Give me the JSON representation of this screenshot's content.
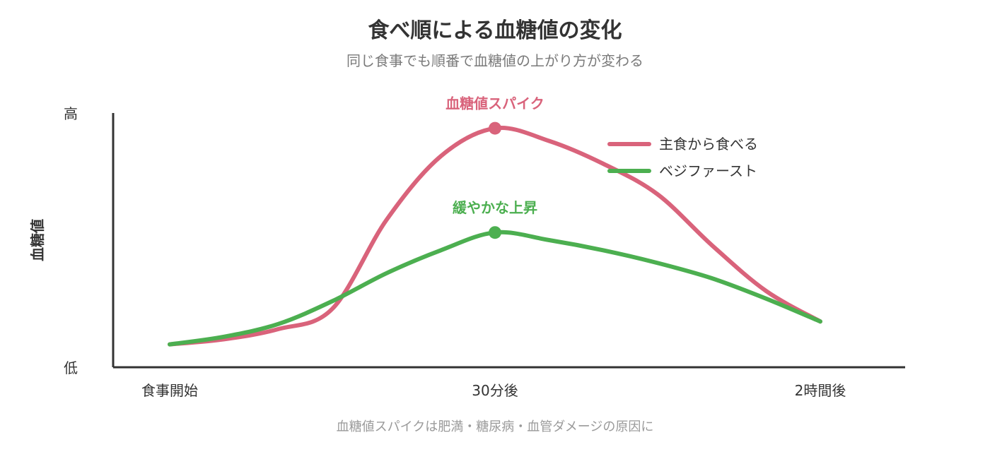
{
  "title": "食べ順による血糖値の変化",
  "subtitle": "同じ食事でも順番で血糖値の上がり方が変わる",
  "footnote": "血糖値スパイクは肥満・糖尿病・血管ダメージの原因に",
  "chart_data": {
    "type": "line",
    "ylabel": "血糖値",
    "y_ticks": [
      "低",
      "高"
    ],
    "ylim": [
      0,
      1
    ],
    "x_ticks": [
      "食事開始",
      "30分後",
      "2時間後"
    ],
    "xlim": [
      0,
      120
    ],
    "series": [
      {
        "name": "主食から食べる",
        "color": "#d9637b",
        "x": [
          0,
          10,
          20,
          30,
          40,
          50,
          60,
          70,
          80,
          90,
          100,
          110,
          120
        ],
        "y": [
          0.09,
          0.11,
          0.15,
          0.23,
          0.58,
          0.83,
          0.94,
          0.89,
          0.8,
          0.68,
          0.48,
          0.3,
          0.18
        ]
      },
      {
        "name": "ベジファースト",
        "color": "#4caf50",
        "x": [
          0,
          10,
          20,
          30,
          40,
          50,
          60,
          70,
          80,
          90,
          100,
          110,
          120
        ],
        "y": [
          0.09,
          0.12,
          0.17,
          0.26,
          0.37,
          0.46,
          0.53,
          0.5,
          0.46,
          0.41,
          0.35,
          0.27,
          0.18
        ]
      }
    ],
    "annotations": [
      {
        "text": "血糖値スパイク",
        "x": 60,
        "y": 0.94,
        "color": "#d9637b"
      },
      {
        "text": "緩やかな上昇",
        "x": 60,
        "y": 0.53,
        "color": "#4caf50"
      }
    ],
    "legend_position": "top-right",
    "grid": false
  }
}
